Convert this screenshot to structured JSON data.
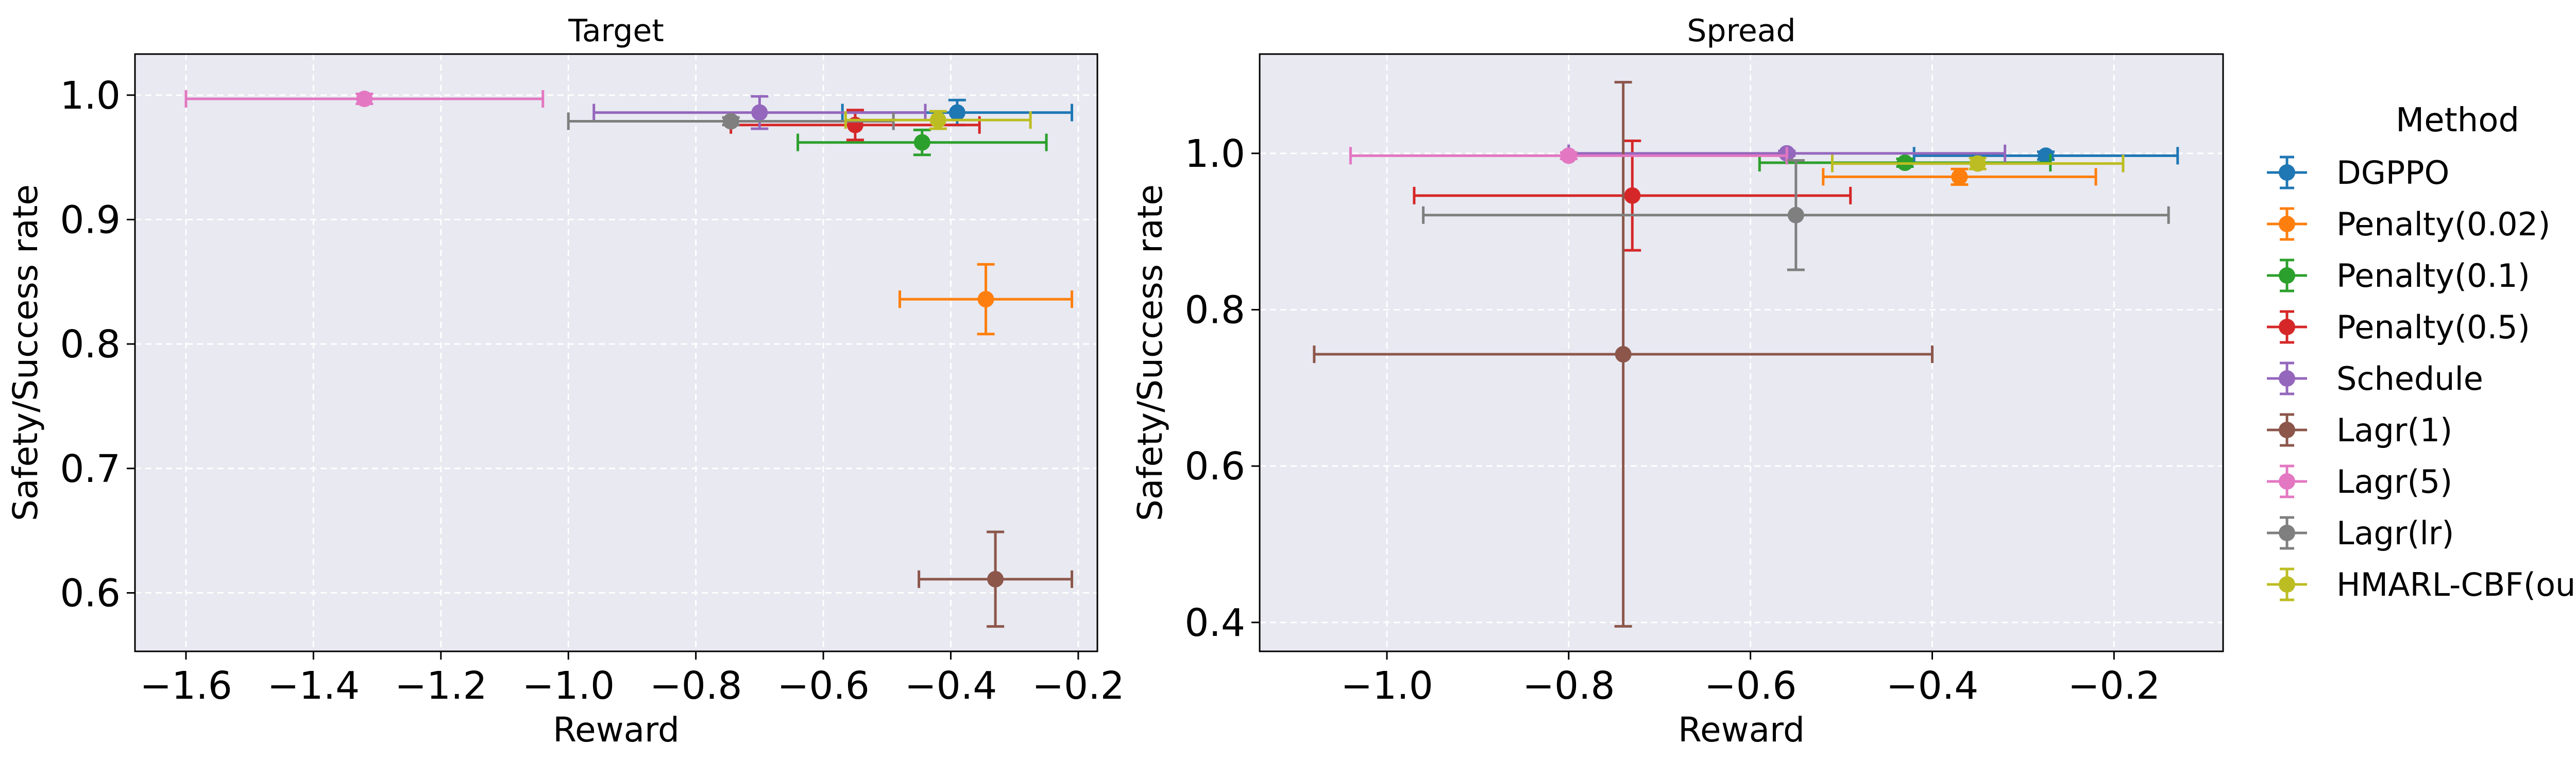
{
  "colors": {
    "DGPPO": "#1f77b4",
    "Penalty(0.02)": "#ff7f0e",
    "Penalty(0.1)": "#2ca02c",
    "Penalty(0.5)": "#d62728",
    "Schedule": "#9467bd",
    "Lagr(1)": "#8c564b",
    "Lagr(5)": "#e377c2",
    "Lagr(lr)": "#7f7f7f",
    "HMARL-CBF(ours)": "#bcbd22",
    "plot_background": "#e8e9f1",
    "grid": "#ffffff"
  },
  "legend": {
    "title": "Method",
    "entries": [
      "DGPPO",
      "Penalty(0.02)",
      "Penalty(0.1)",
      "Penalty(0.5)",
      "Schedule",
      "Lagr(1)",
      "Lagr(5)",
      "Lagr(lr)",
      "HMARL-CBF(ours)"
    ],
    "placement": "right, outside plot"
  },
  "chart_data": [
    {
      "type": "scatter",
      "variant": "errorbar",
      "title": "Target",
      "xlabel": "Reward",
      "ylabel": "Safety/Success rate",
      "xlim": [
        -1.68,
        -0.17
      ],
      "ylim": [
        0.553,
        1.033
      ],
      "xticks": [
        -1.6,
        -1.4,
        -1.2,
        -1.0,
        -0.8,
        -0.6,
        -0.4,
        -0.2
      ],
      "yticks": [
        0.6,
        0.7,
        0.8,
        0.9,
        1.0
      ],
      "xtick_labels": [
        "−1.6",
        "−1.4",
        "−1.2",
        "−1.0",
        "−0.8",
        "−0.6",
        "−0.4",
        "−0.2"
      ],
      "ytick_labels": [
        "0.6",
        "0.7",
        "0.8",
        "0.9",
        "1.0"
      ],
      "grid": true,
      "series": [
        {
          "name": "DGPPO",
          "x": -0.39,
          "y": 0.986,
          "xerr": 0.18,
          "yerr": 0.01
        },
        {
          "name": "Penalty(0.02)",
          "x": -0.345,
          "y": 0.836,
          "xerr": 0.135,
          "yerr": 0.028
        },
        {
          "name": "Penalty(0.1)",
          "x": -0.445,
          "y": 0.962,
          "xerr": 0.195,
          "yerr": 0.01
        },
        {
          "name": "Penalty(0.5)",
          "x": -0.55,
          "y": 0.976,
          "xerr": 0.195,
          "yerr": 0.012
        },
        {
          "name": "Schedule",
          "x": -0.7,
          "y": 0.986,
          "xerr": 0.26,
          "yerr": 0.013
        },
        {
          "name": "Lagr(1)",
          "x": -0.33,
          "y": 0.611,
          "xerr": 0.12,
          "yerr": 0.038
        },
        {
          "name": "Lagr(5)",
          "x": -1.32,
          "y": 0.997,
          "xerr": 0.28,
          "yerr": 0.004
        },
        {
          "name": "Lagr(lr)",
          "x": -0.745,
          "y": 0.979,
          "xerr": 0.255,
          "yerr": 0.003
        },
        {
          "name": "HMARL-CBF(ours)",
          "x": -0.42,
          "y": 0.98,
          "xerr": 0.145,
          "yerr": 0.007
        }
      ]
    },
    {
      "type": "scatter",
      "variant": "errorbar",
      "title": "Spread",
      "xlabel": "Reward",
      "ylabel": "Safety/Success rate",
      "xlim": [
        -1.14,
        -0.08
      ],
      "ylim": [
        0.363,
        1.127
      ],
      "xticks": [
        -1.0,
        -0.8,
        -0.6,
        -0.4,
        -0.2
      ],
      "yticks": [
        0.4,
        0.6,
        0.8,
        1.0
      ],
      "xtick_labels": [
        "−1.0",
        "−0.8",
        "−0.6",
        "−0.4",
        "−0.2"
      ],
      "ytick_labels": [
        "0.4",
        "0.6",
        "0.8",
        "1.0"
      ],
      "grid": true,
      "series": [
        {
          "name": "DGPPO",
          "x": -0.275,
          "y": 0.997,
          "xerr": 0.145,
          "yerr": 0.005
        },
        {
          "name": "Penalty(0.02)",
          "x": -0.37,
          "y": 0.97,
          "xerr": 0.15,
          "yerr": 0.01
        },
        {
          "name": "Penalty(0.1)",
          "x": -0.43,
          "y": 0.988,
          "xerr": 0.16,
          "yerr": 0.005
        },
        {
          "name": "Penalty(0.5)",
          "x": -0.73,
          "y": 0.946,
          "xerr": 0.24,
          "yerr": 0.07
        },
        {
          "name": "Schedule",
          "x": -0.56,
          "y": 1.0,
          "xerr": 0.24,
          "yerr": 0.003
        },
        {
          "name": "Lagr(1)",
          "x": -0.74,
          "y": 0.743,
          "xerr": 0.34,
          "yerr": 0.348
        },
        {
          "name": "Lagr(5)",
          "x": -0.8,
          "y": 0.997,
          "xerr": 0.24,
          "yerr": 0.004
        },
        {
          "name": "Lagr(lr)",
          "x": -0.55,
          "y": 0.921,
          "xerr": 0.41,
          "yerr": 0.07
        },
        {
          "name": "HMARL-CBF(ours)",
          "x": -0.35,
          "y": 0.987,
          "xerr": 0.16,
          "yerr": 0.007
        }
      ]
    }
  ]
}
